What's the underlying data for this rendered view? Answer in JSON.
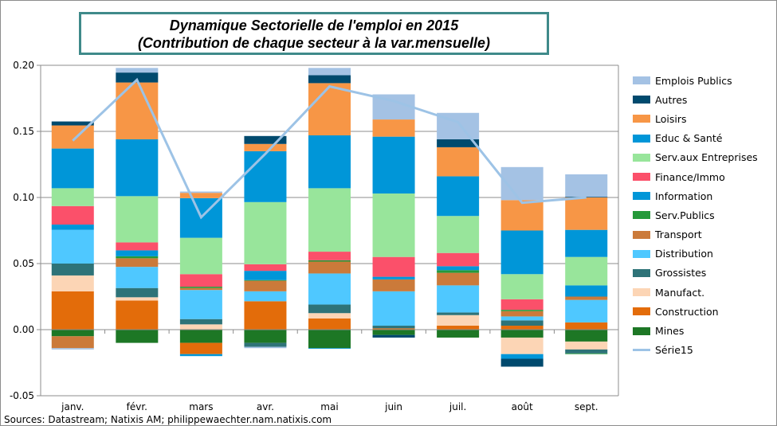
{
  "chart_data": {
    "type": "bar",
    "stacked": true,
    "title": "Dynamique Sectorielle de l'emploi  en 2015",
    "subtitle": "(Contribution de chaque secteur à la var.mensuelle)",
    "categories": [
      "janv.",
      "févr.",
      "mars",
      "avr.",
      "mai",
      "juin",
      "juil.",
      "août",
      "sept."
    ],
    "ylim": [
      -0.05,
      0.2
    ],
    "yticks": [
      "-0.05",
      "0.00",
      "0.05",
      "0.10",
      "0.15",
      "0.20"
    ],
    "ytick_values": [
      -0.05,
      0,
      0.05,
      0.1,
      0.15,
      0.2
    ],
    "grid": true,
    "legend_position": "right",
    "series": [
      {
        "name": "Mines",
        "color": "#1d7725",
        "values": [
          -0.005,
          -0.01,
          -0.01,
          -0.01,
          -0.014,
          -0.004,
          -0.006,
          -0.006,
          -0.009
        ]
      },
      {
        "name": "Construction",
        "color": "#e36c0a",
        "values": [
          0.029,
          0.022,
          -0.0085,
          0.0215,
          0.0085,
          0.001,
          0.003,
          0.003,
          0.0055
        ]
      },
      {
        "name": "Manufact.",
        "color": "#fcd5b5",
        "values": [
          0.012,
          0.0025,
          0.004,
          0,
          0.004,
          0,
          0.008,
          -0.0125,
          -0.006
        ]
      },
      {
        "name": "Grossistes",
        "color": "#2e7378",
        "values": [
          0.009,
          0.007,
          0.004,
          -0.003,
          0.0065,
          0.002,
          0.002,
          0.004,
          -0.003
        ]
      },
      {
        "name": "Distribution",
        "color": "#4fc8ff",
        "values": [
          0.0255,
          0.016,
          0.022,
          0.0075,
          0.0235,
          0.026,
          0.0205,
          0.003,
          0.017
        ]
      },
      {
        "name": "Transport",
        "color": "#cb7a3a",
        "values": [
          -0.009,
          0.0065,
          0.0015,
          0.008,
          0.009,
          0.009,
          0.0095,
          0.004,
          0.0025
        ]
      },
      {
        "name": "Serv.Publics",
        "color": "#25993a",
        "values": [
          0,
          0.0015,
          0.001,
          0.0005,
          0.001,
          0,
          0.002,
          0.001,
          -0.0005
        ]
      },
      {
        "name": "Information",
        "color": "#0096d8",
        "values": [
          0.004,
          0.0045,
          -0.0015,
          0.007,
          -0.0005,
          0.002,
          0.003,
          -0.0035,
          0.0085
        ]
      },
      {
        "name": "Finance/Immo",
        "color": "#fb506a",
        "values": [
          0.014,
          0.006,
          0.0095,
          0.005,
          0.0065,
          0.015,
          0.01,
          0.008,
          0
        ]
      },
      {
        "name": "Serv.aux Entreprises",
        "color": "#98e59b",
        "values": [
          0.0135,
          0.035,
          0.0275,
          0.047,
          0.048,
          0.048,
          0.028,
          0.019,
          0.0215
        ]
      },
      {
        "name": "Educ & Santé",
        "color": "#0096d8",
        "values": [
          0.03,
          0.043,
          0.03,
          0.0385,
          0.04,
          0.043,
          0.03,
          0.033,
          0.0205
        ]
      },
      {
        "name": "Loisirs",
        "color": "#f79646",
        "values": [
          0.0175,
          0.043,
          0.004,
          0.0055,
          0.0395,
          0.013,
          0.022,
          0.023,
          0.0245
        ]
      },
      {
        "name": "Autres",
        "color": "#004a6e",
        "values": [
          0.003,
          0.0075,
          0,
          0.006,
          0.006,
          -0.002,
          0.006,
          -0.006,
          0.0005
        ]
      },
      {
        "name": "Emplois Publics",
        "color": "#a4c2e4",
        "values": [
          -0.001,
          0.0035,
          0.001,
          -0.001,
          0.0055,
          0.019,
          0.02,
          0.025,
          0.017
        ]
      }
    ],
    "line_series": {
      "name": "Série15",
      "color": "#9dc3e6",
      "values": [
        0.143,
        0.189,
        0.085,
        0.133,
        0.184,
        0.173,
        0.157,
        0.096,
        0.1
      ]
    }
  },
  "legend_order": [
    "Emplois Publics",
    "Autres",
    "Loisirs",
    "Educ & Santé",
    "Serv.aux Entreprises",
    "Finance/Immo",
    "Information",
    "Serv.Publics",
    "Transport",
    "Distribution",
    "Grossistes",
    "Manufact.",
    "Construction",
    "Mines",
    "Série15"
  ],
  "source": "Sources: Datastream; Natixis AM; philippewaechter.nam.natixis.com"
}
